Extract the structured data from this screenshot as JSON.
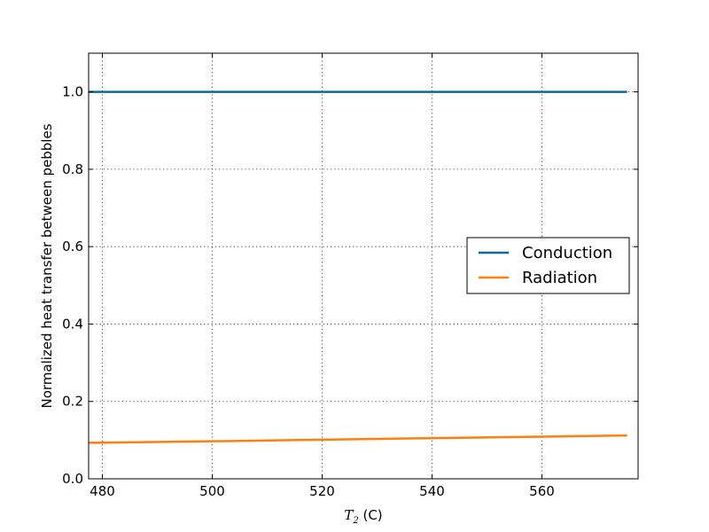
{
  "chart_data": {
    "type": "line",
    "title": "",
    "xlabel_var": "T",
    "xlabel_sub": "2",
    "xlabel_unit": "(C)",
    "ylabel": "Normalized heat transfer between pebbles",
    "xlim": [
      477.5,
      577.5
    ],
    "ylim": [
      0.0,
      1.1
    ],
    "xticks": [
      480,
      500,
      520,
      540,
      560
    ],
    "xtick_labels": [
      "480",
      "500",
      "520",
      "540",
      "560"
    ],
    "yticks": [
      0.0,
      0.2,
      0.4,
      0.6,
      0.8,
      1.0
    ],
    "ytick_labels": [
      "0.0",
      "0.2",
      "0.4",
      "0.6",
      "0.8",
      "1.0"
    ],
    "grid": true,
    "legend_position": "center-right",
    "series": [
      {
        "name": "Conduction",
        "color": "#0b6a9b",
        "x": [
          477.5,
          500,
          520,
          540,
          560,
          575.5
        ],
        "y": [
          1.0,
          1.0,
          1.0,
          1.0,
          1.0,
          1.0
        ]
      },
      {
        "name": "Radiation",
        "color": "#ff7f0e",
        "x": [
          477.5,
          500,
          520,
          540,
          560,
          575.5
        ],
        "y": [
          0.093,
          0.097,
          0.101,
          0.105,
          0.109,
          0.112
        ]
      }
    ]
  }
}
